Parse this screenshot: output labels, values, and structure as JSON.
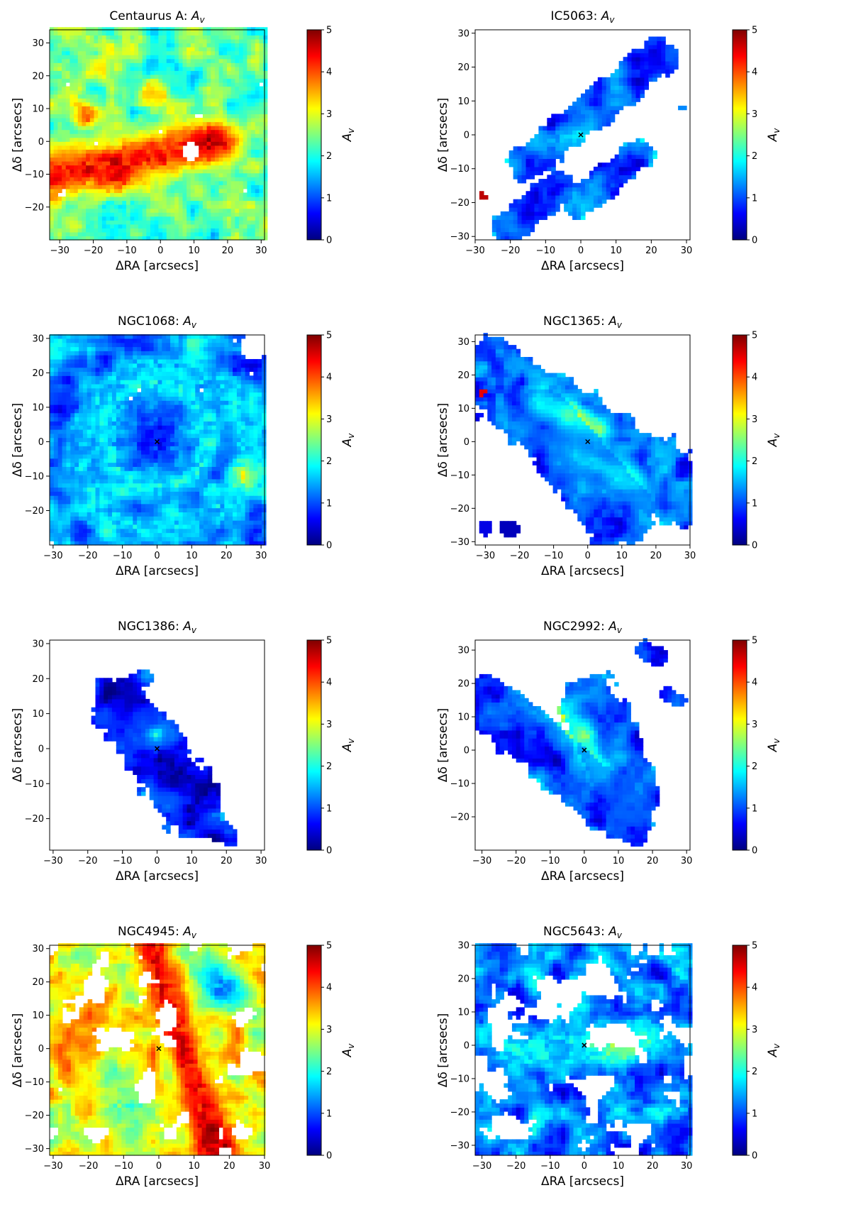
{
  "colorbar": {
    "min": 0,
    "max": 5,
    "ticks": [
      "0",
      "1",
      "2",
      "3",
      "4",
      "5"
    ],
    "label": "A",
    "label_sub": "v",
    "colormap": [
      "#00007f",
      "#0000ff",
      "#007fff",
      "#00ffff",
      "#7fff7f",
      "#ffff00",
      "#ff7f00",
      "#ff0000",
      "#7f0000"
    ]
  },
  "chart_data": [
    {
      "type": "heatmap",
      "title": "Centaurus A: ",
      "title_var": "A",
      "title_sub": "v",
      "xlabel": "ΔRA [arcsecs]",
      "ylabel": "Δδ [arcsecs]",
      "xlim": [
        -33,
        31
      ],
      "ylim": [
        -30,
        34
      ],
      "xticks": [
        -30,
        -20,
        -10,
        0,
        10,
        20,
        30
      ],
      "yticks": [
        -20,
        -10,
        0,
        10,
        20,
        30
      ],
      "clim": [
        0,
        5
      ],
      "colorbar_label": "A_v",
      "background_level": 2.3,
      "coverage": "full",
      "features": [
        {
          "kind": "lane",
          "x1": -32,
          "y1": -10,
          "x2": 18,
          "y2": 0,
          "width": 7,
          "value": 4.3
        },
        {
          "kind": "blob",
          "x": -14,
          "y": -12,
          "r": 6,
          "value": 4.6
        },
        {
          "kind": "blob",
          "x": 14,
          "y": 0,
          "r": 4,
          "value": 4.8
        },
        {
          "kind": "blob",
          "x": -22,
          "y": 8,
          "r": 4,
          "value": 4.0
        },
        {
          "kind": "blob",
          "x": -2,
          "y": 14,
          "r": 5,
          "value": 3.6
        },
        {
          "kind": "blob",
          "x": 10,
          "y": 28,
          "r": 5,
          "value": 2.8
        },
        {
          "kind": "blob",
          "x": -12,
          "y": -22,
          "r": 7,
          "value": 1.9
        }
      ],
      "holes": [
        {
          "x": 9,
          "y": -3,
          "r": 2.6
        },
        {
          "x": -29,
          "y": -16,
          "r": 1.2
        },
        {
          "x": 25,
          "y": -15,
          "r": 0.9
        }
      ],
      "center_marker": false
    },
    {
      "type": "heatmap",
      "title": "IC5063: ",
      "title_var": "A",
      "title_sub": "v",
      "xlabel": "ΔRA [arcsecs]",
      "ylabel": "Δδ [arcsecs]",
      "xlim": [
        -30,
        31
      ],
      "ylim": [
        -31,
        31
      ],
      "xticks": [
        -30,
        -20,
        -10,
        0,
        10,
        20,
        30
      ],
      "yticks": [
        -30,
        -20,
        -10,
        0,
        10,
        20,
        30
      ],
      "clim": [
        0,
        5
      ],
      "colorbar_label": "A_v",
      "background_level": 1.2,
      "coverage": "mask",
      "regions": [
        {
          "x1": -15,
          "y1": -8,
          "x2": 22,
          "y2": 23,
          "width": 5.5,
          "value": 1.0
        },
        {
          "x1": -20,
          "y1": -27,
          "x2": -7,
          "y2": -16,
          "width": 5,
          "value": 0.9
        },
        {
          "x1": -1,
          "y1": -20,
          "x2": 16,
          "y2": -6,
          "width": 4.5,
          "value": 1.1
        }
      ],
      "features": [
        {
          "kind": "blob",
          "x": 0,
          "y": 0,
          "r": 4,
          "value": 2.3
        },
        {
          "kind": "blob",
          "x": -5,
          "y": -1,
          "r": 2.5,
          "value": 1.9
        }
      ],
      "specks": [
        {
          "x": -28,
          "y": -18,
          "r": 0.9,
          "value": 4.7
        },
        {
          "x": 29,
          "y": 8,
          "r": 0.7,
          "value": 1.3
        }
      ],
      "center_marker": true
    },
    {
      "type": "heatmap",
      "title": "NGC1068: ",
      "title_var": "A",
      "title_sub": "v",
      "xlabel": "ΔRA [arcsecs]",
      "ylabel": "Δδ [arcsecs]",
      "xlim": [
        -31,
        31
      ],
      "ylim": [
        -30,
        31
      ],
      "xticks": [
        -30,
        -20,
        -10,
        0,
        10,
        20,
        30
      ],
      "yticks": [
        -20,
        -10,
        0,
        10,
        20,
        30
      ],
      "clim": [
        0,
        5
      ],
      "colorbar_label": "A_v",
      "background_level": 1.3,
      "coverage": "full",
      "features": [
        {
          "kind": "ring",
          "x": 0,
          "y": 2,
          "r": 15,
          "w": 4,
          "value": 1.9
        },
        {
          "kind": "ring",
          "x": 2,
          "y": -2,
          "r": 24,
          "w": 4,
          "value": 1.7
        },
        {
          "kind": "blob",
          "x": 25,
          "y": -10,
          "r": 4,
          "value": 2.9
        },
        {
          "kind": "blob",
          "x": 0,
          "y": 2,
          "r": 9,
          "value": 0.7
        }
      ],
      "holes": [
        {
          "x": 28,
          "y": 28,
          "r": 4
        }
      ],
      "center_marker": true
    },
    {
      "type": "heatmap",
      "title": "NGC1365: ",
      "title_var": "A",
      "title_sub": "v",
      "xlabel": "ΔRA [arcsecs]",
      "ylabel": "Δδ [arcsecs]",
      "xlim": [
        -33,
        30
      ],
      "ylim": [
        -31,
        32
      ],
      "xticks": [
        -30,
        -20,
        -10,
        0,
        10,
        20,
        30
      ],
      "yticks": [
        -30,
        -20,
        -10,
        0,
        10,
        20,
        30
      ],
      "clim": [
        0,
        5
      ],
      "colorbar_label": "A_v",
      "background_level": 1.2,
      "coverage": "mask",
      "regions": [
        {
          "x1": -31,
          "y1": 20,
          "x2": 26,
          "y2": -14,
          "width": 11,
          "value": 1.3
        },
        {
          "x1": -14,
          "y1": 6,
          "x2": 10,
          "y2": -22,
          "width": 10,
          "value": 1.0
        }
      ],
      "features": [
        {
          "kind": "lane",
          "x1": -14,
          "y1": 12,
          "x2": 3,
          "y2": 4,
          "width": 3.5,
          "value": 3.6
        },
        {
          "kind": "blob",
          "x": -5,
          "y": 8,
          "r": 3,
          "value": 4.7
        },
        {
          "kind": "blob",
          "x": 10,
          "y": -11,
          "r": 3,
          "value": 4.4
        },
        {
          "kind": "lane",
          "x1": -3,
          "y1": -4,
          "x2": 14,
          "y2": -12,
          "width": 3,
          "value": 2.9
        }
      ],
      "specks": [
        {
          "x": -31,
          "y": 15,
          "r": 1,
          "value": 4.5
        },
        {
          "x": -23,
          "y": -26,
          "r": 2,
          "value": 0.3
        },
        {
          "x": -30,
          "y": -26,
          "r": 1.5,
          "value": 0.5
        }
      ],
      "center_marker": true
    },
    {
      "type": "heatmap",
      "title": "NGC1386: ",
      "title_var": "A",
      "title_sub": "v",
      "xlabel": "ΔRA [arcsecs]",
      "ylabel": "Δδ [arcsecs]",
      "xlim": [
        -31,
        31
      ],
      "ylim": [
        -29,
        31
      ],
      "xticks": [
        -30,
        -20,
        -10,
        0,
        10,
        20,
        30
      ],
      "yticks": [
        -20,
        -10,
        0,
        10,
        20,
        30
      ],
      "clim": [
        0,
        5
      ],
      "colorbar_label": "A_v",
      "background_level": 0.8,
      "coverage": "mask",
      "regions": [
        {
          "x1": -10,
          "y1": 12,
          "x2": 10,
          "y2": -16,
          "width": 9,
          "value": 0.8
        },
        {
          "x1": 12,
          "y1": -20,
          "x2": 20,
          "y2": -25,
          "width": 3,
          "value": 0.7
        },
        {
          "x1": -7,
          "y1": 20,
          "x2": -3,
          "y2": 20,
          "width": 2,
          "value": 2.0
        }
      ],
      "features": [
        {
          "kind": "blob",
          "x": 0,
          "y": 3,
          "r": 5,
          "value": 2.1
        },
        {
          "kind": "blob",
          "x": 0,
          "y": 4,
          "r": 2,
          "value": 3.3
        },
        {
          "kind": "blob",
          "x": 2,
          "y": -4,
          "r": 6,
          "value": 0.3
        }
      ],
      "center_marker": true
    },
    {
      "type": "heatmap",
      "title": "NGC2992: ",
      "title_var": "A",
      "title_sub": "v",
      "xlabel": "ΔRA [arcsecs]",
      "ylabel": "Δδ [arcsecs]",
      "xlim": [
        -32,
        31
      ],
      "ylim": [
        -30,
        33
      ],
      "xticks": [
        -30,
        -20,
        -10,
        0,
        10,
        20,
        30
      ],
      "yticks": [
        -20,
        -10,
        0,
        10,
        20,
        30
      ],
      "clim": [
        0,
        5
      ],
      "colorbar_label": "A_v",
      "background_level": 1.1,
      "coverage": "mask",
      "regions": [
        {
          "x1": -28,
          "y1": 14,
          "x2": 12,
          "y2": -20,
          "width": 8,
          "value": 1.0
        },
        {
          "x1": 2,
          "y1": 14,
          "x2": 14,
          "y2": -14,
          "width": 9,
          "value": 0.9
        },
        {
          "x1": 18,
          "y1": 30,
          "x2": 22,
          "y2": 28,
          "width": 3,
          "value": 0.4
        },
        {
          "x1": 24,
          "y1": 17,
          "x2": 28,
          "y2": 15,
          "width": 2,
          "value": 0.5
        }
      ],
      "features": [
        {
          "kind": "lane",
          "x1": -6,
          "y1": 12,
          "x2": 5,
          "y2": -6,
          "width": 4,
          "value": 2.9
        },
        {
          "kind": "blob",
          "x": 0,
          "y": 5,
          "r": 3,
          "value": 3.8
        }
      ],
      "center_marker": true
    },
    {
      "type": "heatmap",
      "title": "NGC4945: ",
      "title_var": "A",
      "title_sub": "v",
      "xlabel": "ΔRA [arcsecs]",
      "ylabel": "Δδ [arcsecs]",
      "xlim": [
        -31,
        30
      ],
      "ylim": [
        -32,
        31
      ],
      "xticks": [
        -30,
        -20,
        -10,
        0,
        10,
        20,
        30
      ],
      "yticks": [
        -30,
        -20,
        -10,
        0,
        10,
        20,
        30
      ],
      "clim": [
        0,
        5
      ],
      "colorbar_label": "A_v",
      "background_level": 3.1,
      "coverage": "patchy",
      "features": [
        {
          "kind": "lane",
          "x1": -2,
          "y1": 30,
          "x2": 16,
          "y2": -30,
          "width": 5,
          "value": 4.4
        },
        {
          "kind": "blob",
          "x": 16,
          "y": -28,
          "r": 6,
          "value": 4.8
        },
        {
          "kind": "blob",
          "x": -20,
          "y": 10,
          "r": 7,
          "value": 3.8
        },
        {
          "kind": "blob",
          "x": 18,
          "y": 18,
          "r": 7,
          "value": 1.2
        },
        {
          "kind": "blob",
          "x": -8,
          "y": -18,
          "r": 8,
          "value": 2.3
        }
      ],
      "holes": [
        {
          "x": -22,
          "y": 14,
          "r": 1.5
        },
        {
          "x": 7,
          "y": -21,
          "r": 2
        },
        {
          "x": 19,
          "y": -31,
          "r": 2
        }
      ],
      "center_marker": true
    },
    {
      "type": "heatmap",
      "title": "NGC5643: ",
      "title_var": "A",
      "title_sub": "v",
      "xlabel": "ΔRA [arcsecs]",
      "ylabel": "Δδ [arcsecs]",
      "xlim": [
        -32,
        31
      ],
      "ylim": [
        -33,
        30
      ],
      "xticks": [
        -30,
        -20,
        -10,
        0,
        10,
        20,
        30
      ],
      "yticks": [
        -30,
        -20,
        -10,
        0,
        10,
        20,
        30
      ],
      "clim": [
        0,
        5
      ],
      "colorbar_label": "A_v",
      "background_level": 1.2,
      "coverage": "patchy",
      "features": [
        {
          "kind": "lane",
          "x1": -22,
          "y1": -2,
          "x2": 20,
          "y2": 2,
          "width": 6,
          "value": 1.9
        },
        {
          "kind": "blob",
          "x": 10,
          "y": 0,
          "r": 5,
          "value": 2.6
        },
        {
          "kind": "blob",
          "x": -8,
          "y": 0,
          "r": 5,
          "value": 1.6
        }
      ],
      "holes": [
        {
          "x": 21,
          "y": 12,
          "r": 1.7
        },
        {
          "x": 0,
          "y": -30,
          "r": 1.5
        },
        {
          "x": 10,
          "y": -24,
          "r": 1.5
        }
      ],
      "center_marker": true
    }
  ]
}
